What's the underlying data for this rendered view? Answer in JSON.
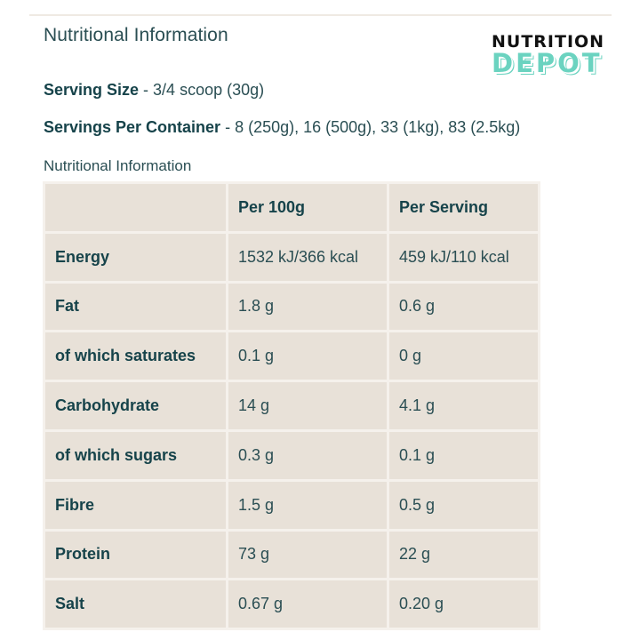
{
  "header": {
    "title": "Nutritional Information"
  },
  "logo": {
    "line1": "NUTRITION",
    "line2": "DEPOT",
    "accent_color": "#6bd3c0"
  },
  "serving_size": {
    "label": "Serving Size",
    "value": " - 3/4 scoop (30g)"
  },
  "servings_per_container": {
    "label": "Servings Per Container",
    "value": " - 8 (250g), 16 (500g), 33 (1kg), 83 (2.5kg)"
  },
  "table": {
    "caption": "Nutritional Information",
    "headers": [
      "",
      "Per 100g",
      "Per Serving"
    ],
    "rows": [
      [
        "Energy",
        "1532 kJ/366 kcal",
        "459 kJ/110 kcal"
      ],
      [
        "Fat",
        "1.8 g",
        "0.6 g"
      ],
      [
        "of which saturates",
        "0.1 g",
        "0 g"
      ],
      [
        "Carbohydrate",
        "14 g",
        "4.1 g"
      ],
      [
        "of which sugars",
        "0.3 g",
        "0.1 g"
      ],
      [
        "Fibre",
        "1.5 g",
        "0.5 g"
      ],
      [
        "Protein",
        "73 g",
        "22 g"
      ],
      [
        "Salt",
        "0.67 g",
        "0.20 g"
      ]
    ]
  }
}
